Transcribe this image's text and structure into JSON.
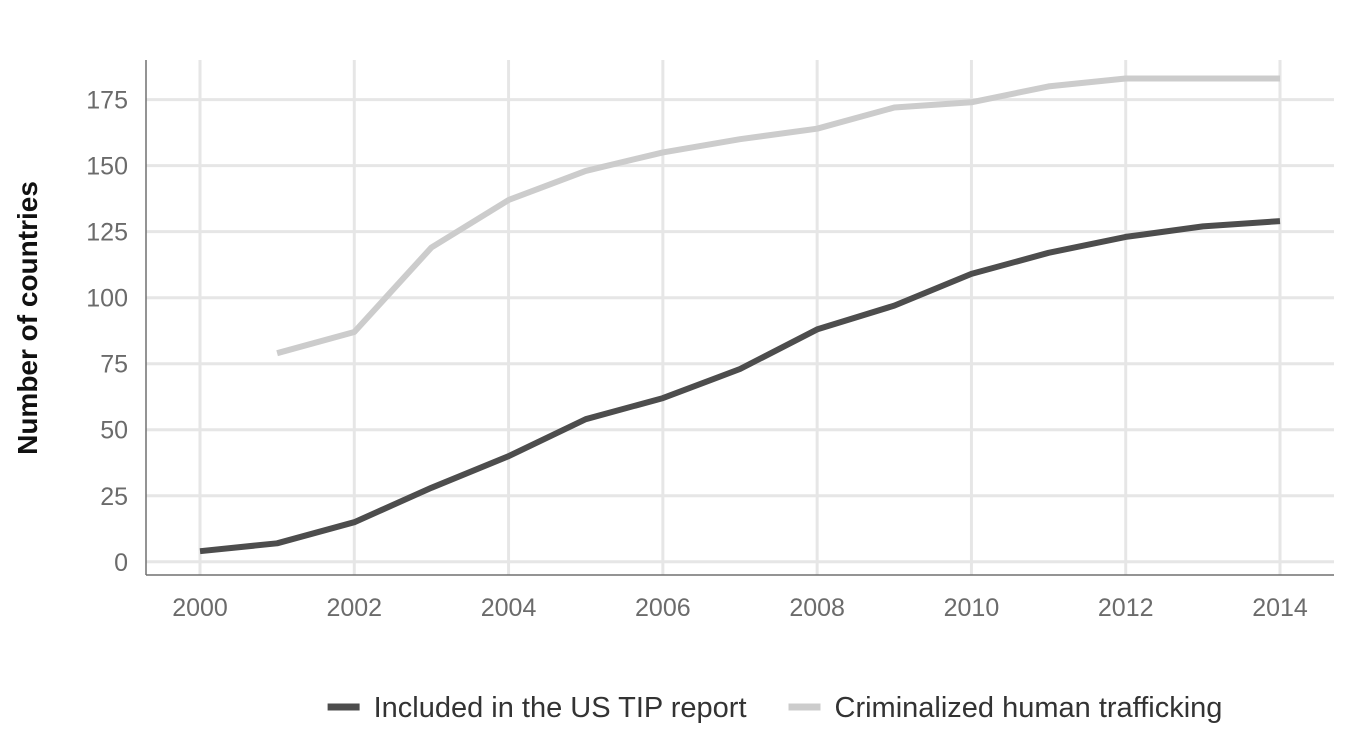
{
  "chart_data": {
    "type": "line",
    "title": "",
    "xlabel": "",
    "ylabel": "Number of countries",
    "x": [
      2000,
      2001,
      2002,
      2003,
      2004,
      2005,
      2006,
      2007,
      2008,
      2009,
      2010,
      2011,
      2012,
      2013,
      2014
    ],
    "x_ticks": [
      "2000",
      "2002",
      "2004",
      "2006",
      "2008",
      "2010",
      "2012",
      "2014"
    ],
    "y_ticks": [
      "0",
      "25",
      "50",
      "75",
      "100",
      "125",
      "150",
      "175"
    ],
    "xlim": [
      1999.3,
      2014.7
    ],
    "ylim": [
      -5,
      190
    ],
    "grid": true,
    "legend_position": "bottom",
    "series": [
      {
        "name": "Included in the US TIP report",
        "color": "#4d4d4d",
        "values": [
          4,
          7,
          15,
          28,
          40,
          54,
          62,
          73,
          88,
          97,
          109,
          117,
          123,
          127,
          129
        ]
      },
      {
        "name": "Criminalized human trafficking",
        "color": "#cccccc",
        "values": [
          null,
          79,
          87,
          119,
          137,
          148,
          155,
          160,
          164,
          172,
          174,
          180,
          183,
          183,
          183
        ]
      }
    ]
  }
}
